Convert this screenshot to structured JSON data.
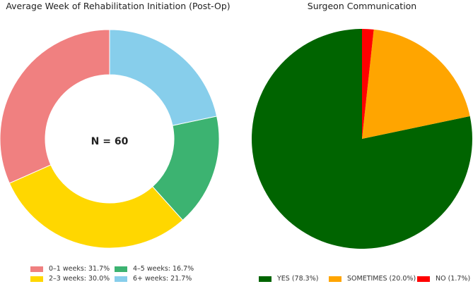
{
  "chart_data": [
    {
      "type": "pie",
      "subtype": "donut",
      "title": "Average Week of Rehabilitation Initiation (Post-Op)",
      "center_label": "N = 60",
      "categories": [
        "0–1 weeks",
        "2–3 weeks",
        "4–5 weeks",
        "6+ weeks"
      ],
      "values": [
        31.7,
        30.0,
        16.7,
        21.7
      ],
      "legend_labels": [
        "0–1 weeks: 31.7%",
        "2–3 weeks: 30.0%",
        "4–5 weeks: 16.7%",
        "6+ weeks: 21.7%"
      ],
      "colors": [
        "#F08080",
        "#FFD700",
        "#3CB371",
        "#87CEEB"
      ],
      "legend_position": "bottom"
    },
    {
      "type": "pie",
      "title": "Surgeon Communication",
      "categories": [
        "YES",
        "SOMETIMES",
        "NO"
      ],
      "values": [
        78.3,
        20.0,
        1.7
      ],
      "legend_labels": [
        "YES (78.3%)",
        "SOMETIMES (20.0%)",
        "NO (1.7%)"
      ],
      "colors": [
        "#006400",
        "#FFA500",
        "#FF0000"
      ],
      "legend_position": "bottom"
    }
  ]
}
